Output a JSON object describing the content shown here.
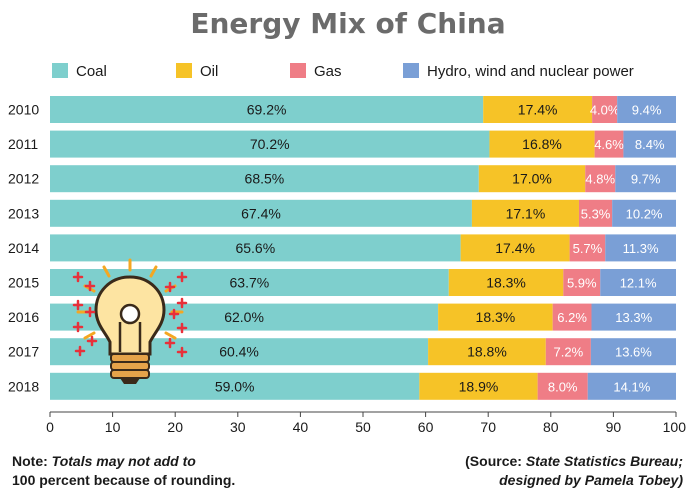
{
  "title": "Energy Mix of China",
  "colors": {
    "coal": "#7ecfcd",
    "oil": "#f6c327",
    "gas": "#ef7d86",
    "hydro": "#7a9fd6",
    "bar_bg": "#9ad7d5"
  },
  "legend": [
    "Coal",
    "Oil",
    "Gas",
    "Hydro, wind and nuclear power"
  ],
  "chart_data": {
    "type": "bar",
    "orientation": "horizontal",
    "stacked": true,
    "title": "Energy Mix of China",
    "categories": [
      "2010",
      "2011",
      "2012",
      "2013",
      "2014",
      "2015",
      "2016",
      "2017",
      "2018"
    ],
    "series": [
      {
        "name": "Coal",
        "values": [
          69.2,
          70.2,
          68.5,
          67.4,
          65.6,
          63.7,
          62.0,
          60.4,
          59.0
        ],
        "labels": [
          "69.2%",
          "70.2%",
          "68.5%",
          "67.4%",
          "65.6%",
          "63.7%",
          "62.0%",
          "60.4%",
          "59.0%"
        ]
      },
      {
        "name": "Oil",
        "values": [
          17.4,
          16.8,
          17.0,
          17.1,
          17.4,
          18.3,
          18.3,
          18.8,
          18.9
        ],
        "labels": [
          "17.4%",
          "16.8%",
          "17.0%",
          "17.1%",
          "17.4%",
          "18.3%",
          "18.3%",
          "18.8%",
          "18.9%"
        ]
      },
      {
        "name": "Gas",
        "values": [
          4.0,
          4.6,
          4.8,
          5.3,
          5.7,
          5.9,
          6.2,
          7.2,
          8.0
        ],
        "labels": [
          "4.0%",
          "4.6%",
          "4.8%",
          "5.3%",
          "5.7%",
          "5.9%",
          "6.2%",
          "7.2%",
          "8.0%"
        ]
      },
      {
        "name": "Hydro, wind and nuclear power",
        "values": [
          9.4,
          8.4,
          9.7,
          10.2,
          11.3,
          12.1,
          13.3,
          13.6,
          14.1
        ],
        "labels": [
          "9.4%",
          "8.4%",
          "9.7%",
          "10.2%",
          "11.3%",
          "12.1%",
          "13.3%",
          "13.6%",
          "14.1%"
        ]
      }
    ],
    "xlim": [
      0,
      100
    ],
    "xticks": [
      "0",
      "10",
      "20",
      "30",
      "40",
      "50",
      "60",
      "70",
      "80",
      "90",
      "100"
    ],
    "legend_position": "top",
    "grid": false
  },
  "notes": {
    "left_prefix": "Note: ",
    "left_italic": "Totals may not add to",
    "left_line2": "100 percent because of rounding.",
    "right_line1_prefix": "(Source: ",
    "right_line1_italic": "State Statistics Bureau;",
    "right_line2": "designed by Pamela Tobey)"
  },
  "icons": [
    "lightbulb-icon",
    "sparkle-plus-icon"
  ]
}
